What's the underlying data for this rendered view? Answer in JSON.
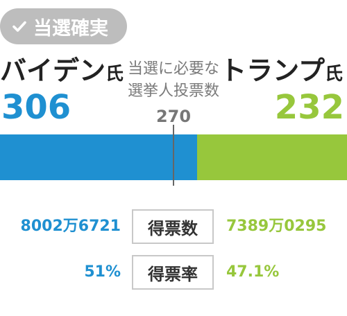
{
  "badge": {
    "label": "当選確実",
    "icon": "check-icon"
  },
  "candidates": {
    "left": {
      "name": "バイデン",
      "suffix": "氏",
      "electoral_votes": "306",
      "electoral_votes_value": 306,
      "popular_votes": "8002万6721",
      "vote_share": "51%",
      "color": "#1f90d1"
    },
    "right": {
      "name": "トランプ",
      "suffix": "氏",
      "electoral_votes": "232",
      "electoral_votes_value": 232,
      "popular_votes": "7389万0295",
      "vote_share": "47.1%",
      "color": "#97c73c"
    }
  },
  "threshold": {
    "caption_line1": "当選に必要な",
    "caption_line2": "選挙人投票数",
    "value": "270"
  },
  "labels": {
    "popular_votes": "得票数",
    "vote_share": "得票率"
  }
}
